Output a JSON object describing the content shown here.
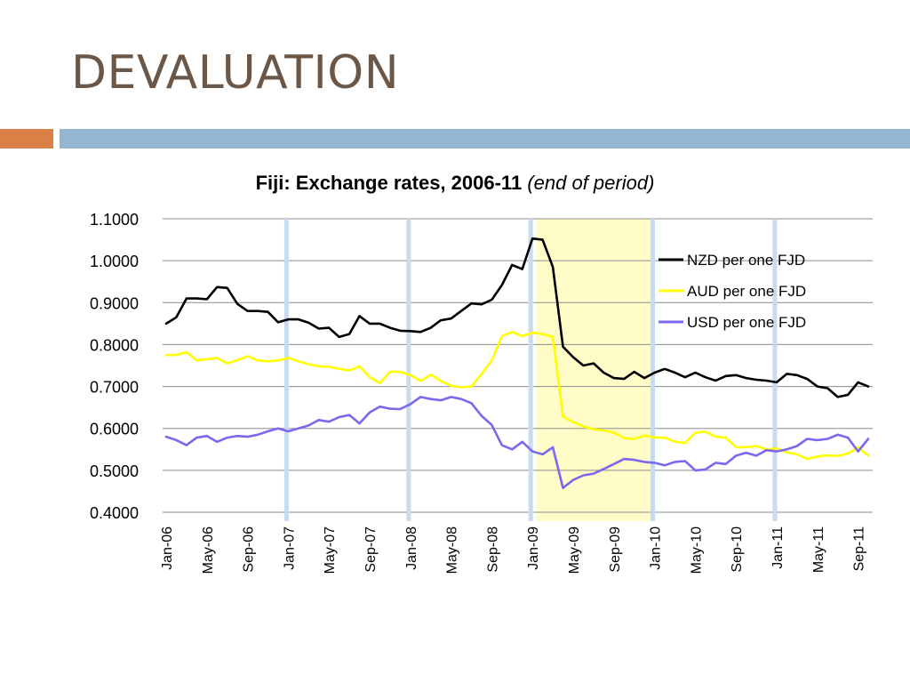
{
  "slide": {
    "title": "DEVALUATION"
  },
  "colors": {
    "title": "#6b5747",
    "accent_orange": "#dd8047",
    "accent_blue": "#94b6d2",
    "highlight": "#fffcc8",
    "nzd": "#000000",
    "aud": "#ffff00",
    "usd": "#7b68ee"
  },
  "chart_data": {
    "type": "line",
    "title": "Fiji: Exchange rates, 2006-11",
    "subtitle": "(end of period)",
    "xlabel": "",
    "ylabel": "",
    "ylim": [
      0.4,
      1.1
    ],
    "yticks": [
      "1.1000",
      "1.0000",
      "0.9000",
      "0.8000",
      "0.7000",
      "0.6000",
      "0.5000",
      "0.4000"
    ],
    "x_start": "Jan-06",
    "x_end": "Oct-11",
    "x_ticks": [
      "Jan-06",
      "May-06",
      "Sep-06",
      "Jan-07",
      "May-07",
      "Sep-07",
      "Jan-08",
      "May-08",
      "Sep-08",
      "Jan-09",
      "May-09",
      "Sep-09",
      "Jan-10",
      "May-10",
      "Sep-10",
      "Jan-11",
      "May-11",
      "Sep-11"
    ],
    "grid": "horizontal",
    "legend_position": "top-right",
    "highlight_range": [
      "Jan-09",
      "Jan-10"
    ],
    "reference_lines": [
      "Jan-07",
      "Jan-08",
      "Jan-09",
      "Jan-10",
      "Jan-11"
    ],
    "series": [
      {
        "name": "NZD per one FJD",
        "values": [
          0.85,
          0.865,
          0.91,
          0.91,
          0.908,
          0.937,
          0.935,
          0.897,
          0.88,
          0.88,
          0.878,
          0.853,
          0.86,
          0.86,
          0.852,
          0.838,
          0.84,
          0.818,
          0.825,
          0.868,
          0.85,
          0.85,
          0.84,
          0.833,
          0.832,
          0.83,
          0.84,
          0.858,
          0.862,
          0.88,
          0.898,
          0.896,
          0.907,
          0.942,
          0.99,
          0.98,
          1.053,
          1.05,
          0.985,
          0.795,
          0.77,
          0.75,
          0.755,
          0.733,
          0.72,
          0.718,
          0.735,
          0.72,
          0.733,
          0.742,
          0.733,
          0.722,
          0.733,
          0.722,
          0.714,
          0.725,
          0.727,
          0.72,
          0.716,
          0.714,
          0.71,
          0.73,
          0.727,
          0.718,
          0.7,
          0.696,
          0.675,
          0.68,
          0.71,
          0.7
        ]
      },
      {
        "name": "AUD per one FJD",
        "values": [
          0.775,
          0.775,
          0.782,
          0.762,
          0.765,
          0.768,
          0.755,
          0.763,
          0.772,
          0.762,
          0.76,
          0.762,
          0.768,
          0.76,
          0.753,
          0.748,
          0.747,
          0.742,
          0.738,
          0.748,
          0.722,
          0.708,
          0.735,
          0.735,
          0.727,
          0.713,
          0.728,
          0.713,
          0.702,
          0.698,
          0.7,
          0.73,
          0.762,
          0.82,
          0.83,
          0.82,
          0.828,
          0.825,
          0.818,
          0.628,
          0.615,
          0.605,
          0.598,
          0.595,
          0.59,
          0.577,
          0.575,
          0.583,
          0.578,
          0.578,
          0.568,
          0.565,
          0.59,
          0.592,
          0.58,
          0.578,
          0.555,
          0.555,
          0.558,
          0.55,
          0.552,
          0.543,
          0.538,
          0.527,
          0.533,
          0.536,
          0.534,
          0.54,
          0.555,
          0.535
        ]
      },
      {
        "name": "USD per one FJD",
        "values": [
          0.58,
          0.572,
          0.56,
          0.578,
          0.582,
          0.568,
          0.578,
          0.582,
          0.58,
          0.585,
          0.593,
          0.6,
          0.593,
          0.6,
          0.607,
          0.62,
          0.616,
          0.627,
          0.632,
          0.612,
          0.638,
          0.652,
          0.647,
          0.646,
          0.658,
          0.675,
          0.67,
          0.667,
          0.675,
          0.67,
          0.66,
          0.63,
          0.608,
          0.56,
          0.55,
          0.568,
          0.545,
          0.538,
          0.555,
          0.458,
          0.477,
          0.488,
          0.492,
          0.503,
          0.515,
          0.527,
          0.525,
          0.52,
          0.518,
          0.512,
          0.52,
          0.522,
          0.5,
          0.502,
          0.518,
          0.515,
          0.535,
          0.542,
          0.535,
          0.548,
          0.545,
          0.55,
          0.558,
          0.575,
          0.572,
          0.575,
          0.585,
          0.578,
          0.545,
          0.575
        ]
      }
    ]
  }
}
